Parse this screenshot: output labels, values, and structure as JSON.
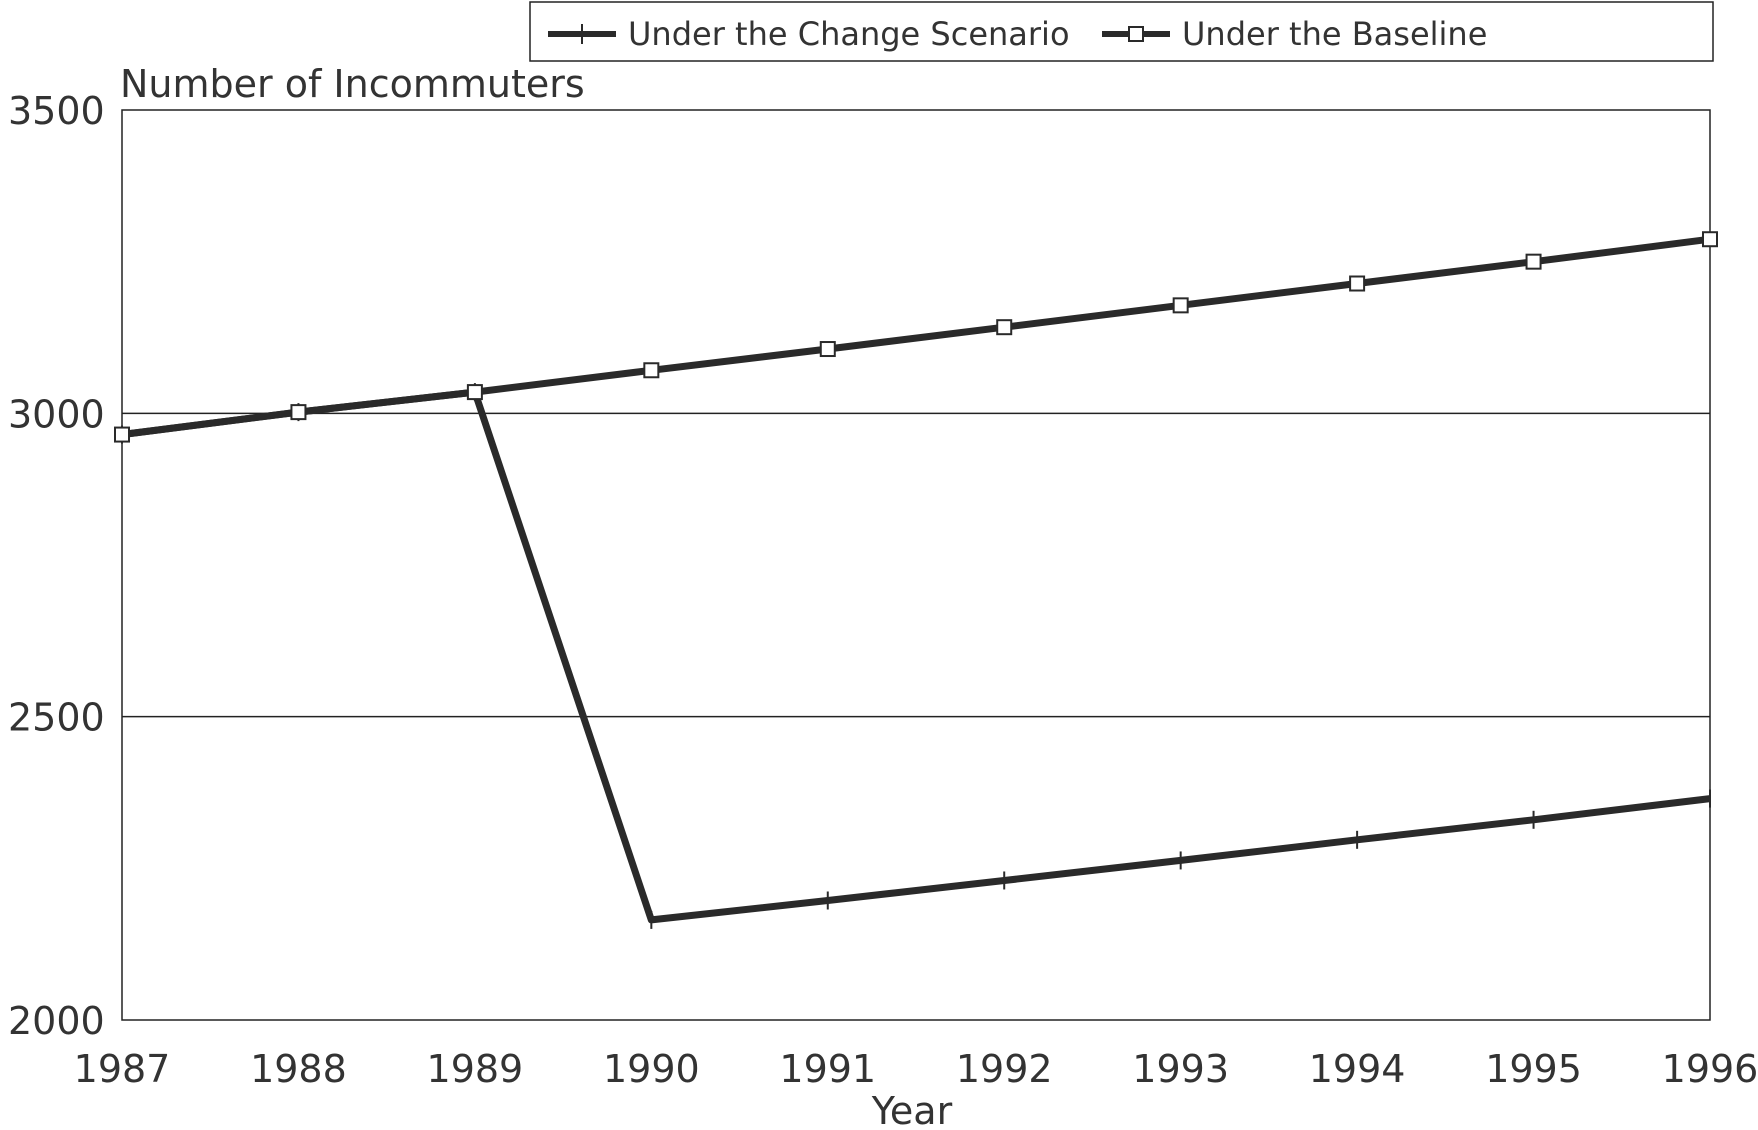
{
  "chart_data": {
    "type": "line",
    "x": [
      1987,
      1988,
      1989,
      1990,
      1991,
      1992,
      1993,
      1994,
      1995,
      1996
    ],
    "x_tick_labels": [
      "1987",
      "1988",
      "1989",
      "1990",
      "1991",
      "1992",
      "1993",
      "1994",
      "1995",
      "1996"
    ],
    "xlabel": "Year",
    "ylabel": "Number of Incommuters",
    "ylim": [
      2000,
      3500
    ],
    "y_ticks": [
      2000,
      2500,
      3000,
      3500
    ],
    "y_tick_labels": [
      "2000",
      "2500",
      "3000",
      "3500"
    ],
    "grid": "horizontal",
    "legend_placement": "top",
    "series": [
      {
        "name": "Under the Change Scenario",
        "marker": "plus",
        "values": [
          2965,
          3002,
          3035,
          2165,
          2197,
          2230,
          2263,
          2297,
          2330,
          2365
        ]
      },
      {
        "name": "Under the Baseline",
        "marker": "square",
        "values": [
          2965,
          3002,
          3035,
          3071,
          3106,
          3142,
          3178,
          3214,
          3250,
          3287
        ]
      }
    ],
    "colors": {
      "line": "#2a2a2a",
      "frame": "#222222",
      "text": "#333333"
    }
  }
}
